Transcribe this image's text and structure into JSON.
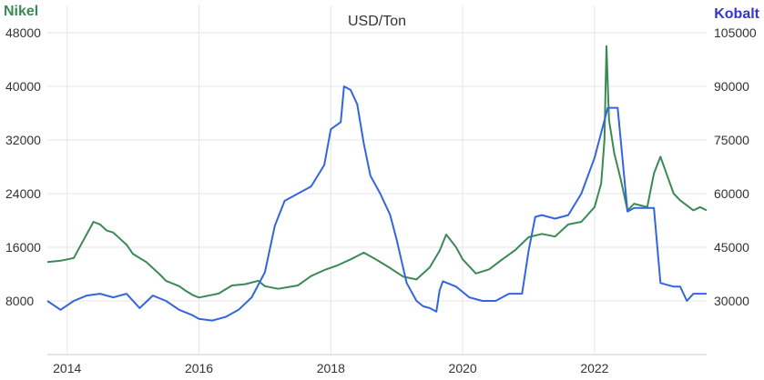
{
  "chart_data": {
    "type": "line",
    "title": "USD/Ton",
    "left_axis": {
      "label": "Nikel",
      "color": "#3b8a55",
      "ylim": [
        0,
        48000
      ],
      "ticks": [
        8000,
        16000,
        24000,
        32000,
        40000,
        48000
      ]
    },
    "right_axis": {
      "label": "Kobalt",
      "color": "#3535d0",
      "ylim": [
        15000,
        105000
      ],
      "ticks": [
        30000,
        45000,
        60000,
        75000,
        90000,
        105000
      ]
    },
    "xlim": [
      2013.7,
      2023.7
    ],
    "x_ticks": [
      "2014",
      "2016",
      "2018",
      "2020",
      "2022"
    ],
    "grid": true,
    "series": [
      {
        "name": "Nikel",
        "axis": "left",
        "color": "#3b8a55",
        "x": [
          2013.7,
          2013.9,
          2014.1,
          2014.3,
          2014.4,
          2014.5,
          2014.6,
          2014.7,
          2014.9,
          2015.0,
          2015.2,
          2015.4,
          2015.5,
          2015.7,
          2015.8,
          2015.9,
          2016.0,
          2016.1,
          2016.3,
          2016.5,
          2016.7,
          2016.9,
          2017.0,
          2017.2,
          2017.5,
          2017.7,
          2017.9,
          2018.1,
          2018.3,
          2018.4,
          2018.5,
          2018.7,
          2018.9,
          2019.1,
          2019.3,
          2019.5,
          2019.65,
          2019.75,
          2019.9,
          2020.0,
          2020.2,
          2020.4,
          2020.6,
          2020.8,
          2021.0,
          2021.2,
          2021.4,
          2021.6,
          2021.8,
          2022.0,
          2022.1,
          2022.15,
          2022.18,
          2022.22,
          2022.3,
          2022.4,
          2022.5,
          2022.6,
          2022.8,
          2022.9,
          2023.0,
          2023.2,
          2023.3,
          2023.5,
          2023.6,
          2023.7
        ],
        "y": [
          13800,
          14000,
          14400,
          18000,
          19800,
          19400,
          18500,
          18200,
          16400,
          15000,
          13800,
          12000,
          11000,
          10200,
          9500,
          8900,
          8500,
          8700,
          9100,
          10300,
          10500,
          11000,
          10200,
          9800,
          10300,
          11700,
          12600,
          13300,
          14200,
          14700,
          15200,
          14100,
          12900,
          11600,
          11200,
          13000,
          15500,
          17900,
          16000,
          14200,
          12100,
          12700,
          14200,
          15600,
          17500,
          18000,
          17600,
          19400,
          19800,
          22000,
          25500,
          32000,
          46000,
          35000,
          30000,
          26000,
          21500,
          22500,
          22000,
          27000,
          29500,
          24000,
          23000,
          21500,
          22000,
          21500
        ]
      },
      {
        "name": "Kobalt",
        "axis": "right",
        "color": "#3366dd",
        "x": [
          2013.7,
          2013.9,
          2014.1,
          2014.3,
          2014.5,
          2014.7,
          2014.9,
          2015.1,
          2015.3,
          2015.5,
          2015.7,
          2015.9,
          2016.0,
          2016.2,
          2016.4,
          2016.6,
          2016.8,
          2017.0,
          2017.15,
          2017.3,
          2017.5,
          2017.7,
          2017.9,
          2018.0,
          2018.15,
          2018.2,
          2018.3,
          2018.4,
          2018.5,
          2018.6,
          2018.75,
          2018.9,
          2019.0,
          2019.15,
          2019.3,
          2019.4,
          2019.5,
          2019.6,
          2019.65,
          2019.7,
          2019.9,
          2020.1,
          2020.3,
          2020.5,
          2020.7,
          2020.9,
          2021.0,
          2021.1,
          2021.2,
          2021.4,
          2021.6,
          2021.8,
          2022.0,
          2022.2,
          2022.35,
          2022.5,
          2022.6,
          2022.8,
          2022.9,
          2023.0,
          2023.2,
          2023.3,
          2023.4,
          2023.5,
          2023.7
        ],
        "y": [
          30000,
          27500,
          30000,
          31500,
          32000,
          31000,
          32000,
          28000,
          31500,
          30000,
          27500,
          26000,
          25000,
          24500,
          25500,
          27500,
          31000,
          38000,
          51000,
          58000,
          60000,
          62000,
          68000,
          78000,
          80000,
          90000,
          89000,
          85000,
          74000,
          65000,
          60000,
          54000,
          47000,
          35000,
          30000,
          28500,
          28000,
          27000,
          33000,
          35500,
          34000,
          31000,
          30000,
          30000,
          32000,
          32000,
          44000,
          53500,
          54000,
          53000,
          54000,
          60000,
          70000,
          84000,
          84000,
          55000,
          56000,
          56000,
          56000,
          35000,
          34000,
          34000,
          30000,
          32000,
          32000
        ]
      }
    ]
  }
}
